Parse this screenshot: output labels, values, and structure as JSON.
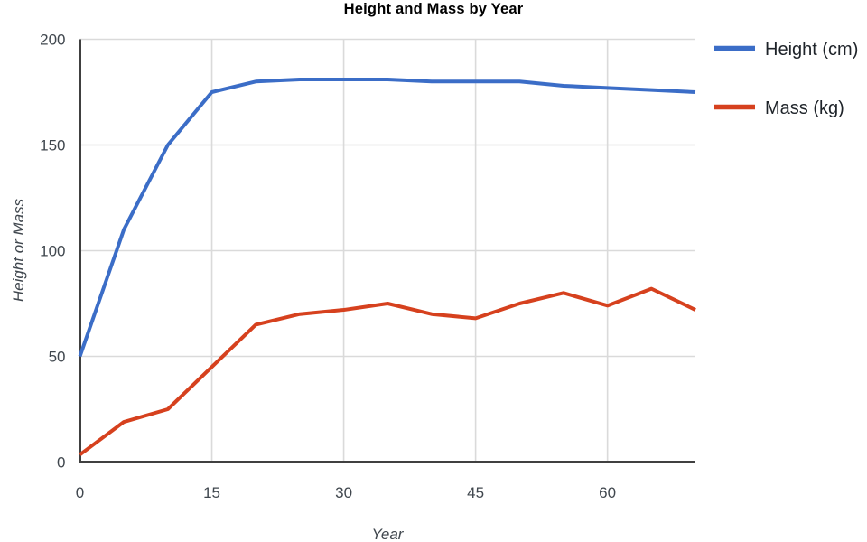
{
  "chart_data": {
    "type": "line",
    "title": "Height and Mass by Year",
    "xlabel": "Year",
    "ylabel": "Height or Mass",
    "x": [
      0,
      5,
      10,
      15,
      20,
      25,
      30,
      35,
      40,
      45,
      50,
      55,
      60,
      65,
      70
    ],
    "series": [
      {
        "name": "Height (cm)",
        "color": "#3B6DC7",
        "values": [
          50,
          110,
          150,
          175,
          180,
          181,
          181,
          181,
          180,
          180,
          180,
          178,
          177,
          176,
          175
        ]
      },
      {
        "name": "Mass (kg)",
        "color": "#D6411E",
        "values": [
          3.5,
          19,
          25,
          45,
          65,
          70,
          72,
          75,
          70,
          68,
          75,
          80,
          74,
          82,
          72
        ]
      }
    ],
    "xlim": [
      0,
      70
    ],
    "ylim": [
      0,
      200
    ],
    "xticks": [
      0,
      15,
      30,
      45,
      60
    ],
    "yticks": [
      0,
      50,
      100,
      150,
      200
    ],
    "grid": true,
    "legend_position": "right"
  },
  "colors": {
    "background": "#ffffff",
    "grid": "#DADADA",
    "axis": "#404040",
    "tick_label": "#40474E",
    "axis_label": "#40474E",
    "legend_text": "#1E2329",
    "title": "#000000"
  }
}
